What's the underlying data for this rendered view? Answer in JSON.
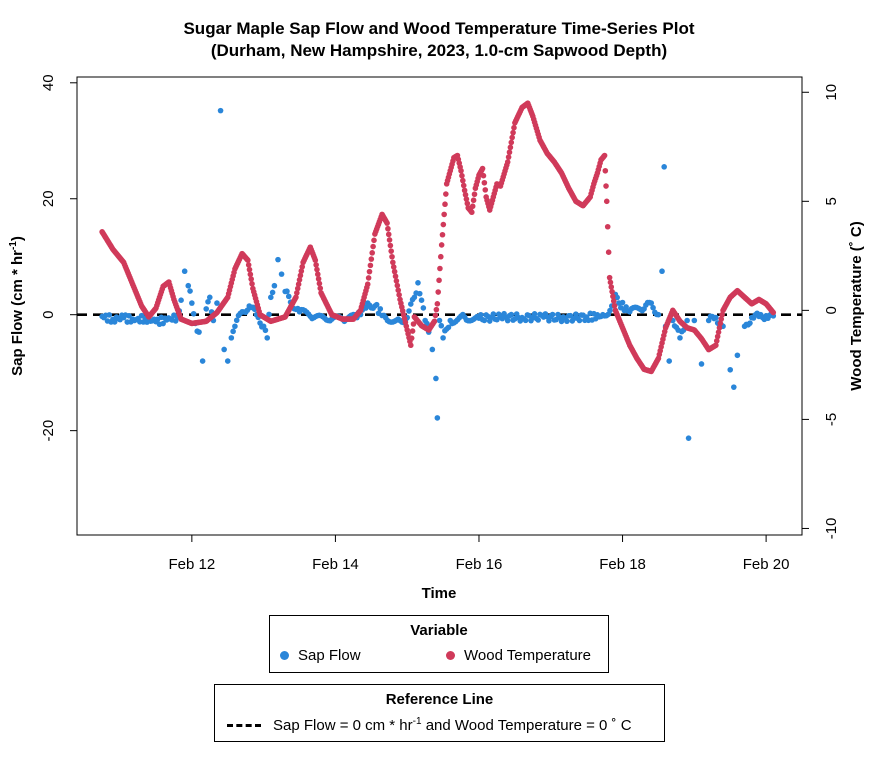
{
  "chart_data": {
    "type": "scatter",
    "title_line1": "Sugar Maple Sap Flow and Wood Temperature Time-Series Plot",
    "title_line2": "(Durham, New Hampshire, 2023, 1.0-cm Sapwood Depth)",
    "xlabel": "Time",
    "ylabel_left_main": "Sap Flow (cm * hr",
    "ylabel_left_sup": "-1",
    "ylabel_left_end": ")",
    "ylabel_right": "Wood Temperature (˚ C)",
    "x_ticks": [
      "Feb 12",
      "Feb 14",
      "Feb 16",
      "Feb 18",
      "Feb 20"
    ],
    "x_tick_values": [
      12,
      14,
      16,
      18,
      20
    ],
    "xlim": [
      10.4,
      20.5
    ],
    "y_left_ticks": [
      "-20",
      "0",
      "20",
      "40"
    ],
    "y_left_tick_values": [
      -20,
      0,
      20,
      40
    ],
    "ylim_left": [
      -38,
      41
    ],
    "y_right_ticks": [
      "-10",
      "-5",
      "0",
      "5",
      "10"
    ],
    "y_right_tick_values": [
      -10,
      -5,
      0,
      5,
      10
    ],
    "ylim_right": [
      -10.3,
      10.7
    ],
    "colors": {
      "sap_flow": "#2a86d9",
      "wood_temperature": "#d03a5a",
      "reference": "#000000"
    },
    "series": [
      {
        "name": "Sap Flow",
        "axis": "left",
        "points": [
          [
            10.75,
            -0.3
          ],
          [
            10.9,
            -0.8
          ],
          [
            11.05,
            -0.5
          ],
          [
            11.2,
            -1.0
          ],
          [
            11.35,
            -0.6
          ],
          [
            11.5,
            -1.2
          ],
          [
            11.65,
            -0.9
          ],
          [
            11.8,
            -0.4
          ],
          [
            11.85,
            2.5
          ],
          [
            11.9,
            7.5
          ],
          [
            11.95,
            5.0
          ],
          [
            12.0,
            2.0
          ],
          [
            12.05,
            -1.5
          ],
          [
            12.1,
            -3.0
          ],
          [
            12.15,
            -8.0
          ],
          [
            12.2,
            1.0
          ],
          [
            12.25,
            3.0
          ],
          [
            12.3,
            -1.0
          ],
          [
            12.35,
            2.0
          ],
          [
            12.4,
            35.2
          ],
          [
            12.45,
            -6.0
          ],
          [
            12.5,
            -8.0
          ],
          [
            12.55,
            -4.0
          ],
          [
            12.6,
            -2.0
          ],
          [
            12.7,
            0.5
          ],
          [
            12.8,
            1.5
          ],
          [
            12.9,
            0.0
          ],
          [
            13.0,
            -2.0
          ],
          [
            13.05,
            -4.0
          ],
          [
            13.1,
            3.0
          ],
          [
            13.15,
            5.0
          ],
          [
            13.2,
            9.5
          ],
          [
            13.25,
            7.0
          ],
          [
            13.3,
            4.0
          ],
          [
            13.4,
            2.0
          ],
          [
            13.5,
            0.5
          ],
          [
            13.7,
            -0.5
          ],
          [
            13.9,
            -1.0
          ],
          [
            14.1,
            -0.8
          ],
          [
            14.3,
            -0.5
          ],
          [
            14.45,
            2.0
          ],
          [
            14.55,
            1.5
          ],
          [
            14.7,
            -0.5
          ],
          [
            14.9,
            -1.0
          ],
          [
            15.0,
            -0.5
          ],
          [
            15.1,
            3.0
          ],
          [
            15.15,
            5.5
          ],
          [
            15.2,
            2.5
          ],
          [
            15.25,
            -1.0
          ],
          [
            15.3,
            -3.0
          ],
          [
            15.35,
            -6.0
          ],
          [
            15.4,
            -11.0
          ],
          [
            15.42,
            -17.8
          ],
          [
            15.45,
            -1.0
          ],
          [
            15.5,
            -4.0
          ],
          [
            15.6,
            -1.0
          ],
          [
            15.8,
            -0.4
          ],
          [
            16.0,
            -0.6
          ],
          [
            16.3,
            -0.4
          ],
          [
            16.6,
            -0.5
          ],
          [
            16.9,
            -0.4
          ],
          [
            17.2,
            -0.6
          ],
          [
            17.5,
            -0.4
          ],
          [
            17.75,
            -0.2
          ],
          [
            17.85,
            1.5
          ],
          [
            17.9,
            3.5
          ],
          [
            17.95,
            2.0
          ],
          [
            18.1,
            0.5
          ],
          [
            18.3,
            1.0
          ],
          [
            18.4,
            2.0
          ],
          [
            18.5,
            0.0
          ],
          [
            18.55,
            7.5
          ],
          [
            18.58,
            25.5
          ],
          [
            18.6,
            -2.0
          ],
          [
            18.65,
            -8.0
          ],
          [
            18.7,
            -1.0
          ],
          [
            18.8,
            -4.0
          ],
          [
            18.9,
            -1.0
          ],
          [
            18.92,
            -21.3
          ],
          [
            19.0,
            -1.0
          ],
          [
            19.1,
            -8.5
          ],
          [
            19.2,
            -1.0
          ],
          [
            19.3,
            -0.5
          ],
          [
            19.4,
            -2.0
          ],
          [
            19.5,
            -9.5
          ],
          [
            19.55,
            -12.5
          ],
          [
            19.6,
            -7.0
          ],
          [
            19.7,
            -2.0
          ],
          [
            19.8,
            -0.5
          ],
          [
            19.9,
            -0.3
          ],
          [
            20.0,
            -0.2
          ],
          [
            20.1,
            -0.2
          ]
        ]
      },
      {
        "name": "Wood Temperature",
        "axis": "right",
        "points": [
          [
            10.75,
            3.6
          ],
          [
            10.9,
            2.8
          ],
          [
            11.05,
            2.2
          ],
          [
            11.2,
            1.0
          ],
          [
            11.3,
            0.2
          ],
          [
            11.4,
            -0.3
          ],
          [
            11.5,
            0.1
          ],
          [
            11.6,
            1.1
          ],
          [
            11.68,
            1.3
          ],
          [
            11.75,
            0.5
          ],
          [
            11.85,
            -0.4
          ],
          [
            12.0,
            -0.6
          ],
          [
            12.2,
            -0.5
          ],
          [
            12.35,
            -0.1
          ],
          [
            12.5,
            0.6
          ],
          [
            12.6,
            1.9
          ],
          [
            12.7,
            2.6
          ],
          [
            12.78,
            2.3
          ],
          [
            12.85,
            1.0
          ],
          [
            12.95,
            -0.2
          ],
          [
            13.1,
            -0.5
          ],
          [
            13.3,
            -0.3
          ],
          [
            13.45,
            0.6
          ],
          [
            13.55,
            2.2
          ],
          [
            13.65,
            2.9
          ],
          [
            13.72,
            2.3
          ],
          [
            13.8,
            0.8
          ],
          [
            13.95,
            -0.2
          ],
          [
            14.1,
            -0.4
          ],
          [
            14.25,
            -0.4
          ],
          [
            14.35,
            0.0
          ],
          [
            14.45,
            1.2
          ],
          [
            14.55,
            3.5
          ],
          [
            14.65,
            4.4
          ],
          [
            14.72,
            4.0
          ],
          [
            14.8,
            2.2
          ],
          [
            14.9,
            0.5
          ],
          [
            15.0,
            -0.9
          ],
          [
            15.05,
            -1.6
          ],
          [
            15.1,
            -0.3
          ],
          [
            15.2,
            -0.7
          ],
          [
            15.3,
            -0.9
          ],
          [
            15.38,
            -0.5
          ],
          [
            15.42,
            0.3
          ],
          [
            15.48,
            3.0
          ],
          [
            15.55,
            5.8
          ],
          [
            15.6,
            6.4
          ],
          [
            15.65,
            7.0
          ],
          [
            15.7,
            7.1
          ],
          [
            15.75,
            6.4
          ],
          [
            15.8,
            5.5
          ],
          [
            15.85,
            4.7
          ],
          [
            15.9,
            4.5
          ],
          [
            15.95,
            5.6
          ],
          [
            16.0,
            6.2
          ],
          [
            16.05,
            6.5
          ],
          [
            16.1,
            5.2
          ],
          [
            16.15,
            4.6
          ],
          [
            16.2,
            5.2
          ],
          [
            16.25,
            5.8
          ],
          [
            16.3,
            5.7
          ],
          [
            16.4,
            6.8
          ],
          [
            16.5,
            8.6
          ],
          [
            16.6,
            9.3
          ],
          [
            16.68,
            9.5
          ],
          [
            16.75,
            8.9
          ],
          [
            16.85,
            7.8
          ],
          [
            16.95,
            7.2
          ],
          [
            17.05,
            6.8
          ],
          [
            17.15,
            6.3
          ],
          [
            17.25,
            5.6
          ],
          [
            17.35,
            5.0
          ],
          [
            17.45,
            4.8
          ],
          [
            17.55,
            5.2
          ],
          [
            17.6,
            5.8
          ],
          [
            17.65,
            6.3
          ],
          [
            17.7,
            6.9
          ],
          [
            17.75,
            7.1
          ],
          [
            17.78,
            5.0
          ],
          [
            17.82,
            1.5
          ],
          [
            17.9,
            0.0
          ],
          [
            18.0,
            -0.8
          ],
          [
            18.1,
            -1.6
          ],
          [
            18.2,
            -2.2
          ],
          [
            18.3,
            -2.7
          ],
          [
            18.4,
            -2.8
          ],
          [
            18.5,
            -2.2
          ],
          [
            18.6,
            -0.8
          ],
          [
            18.7,
            0.0
          ],
          [
            18.8,
            -0.5
          ],
          [
            18.9,
            -0.8
          ],
          [
            19.0,
            -0.9
          ],
          [
            19.1,
            -1.3
          ],
          [
            19.2,
            -1.8
          ],
          [
            19.3,
            -1.6
          ],
          [
            19.4,
            0.0
          ],
          [
            19.5,
            0.6
          ],
          [
            19.6,
            0.9
          ],
          [
            19.7,
            0.6
          ],
          [
            19.8,
            0.3
          ],
          [
            19.9,
            0.5
          ],
          [
            20.0,
            0.3
          ],
          [
            20.1,
            -0.1
          ]
        ]
      }
    ],
    "reference_line": {
      "sap_flow": 0,
      "wood_temperature": 0,
      "style": "dashed"
    }
  },
  "legend_variable": {
    "title": "Variable",
    "items": [
      {
        "label": "Sap Flow",
        "color": "#2a86d9"
      },
      {
        "label": "Wood Temperature",
        "color": "#d03a5a"
      }
    ]
  },
  "legend_reference": {
    "title": "Reference Line",
    "label_part1": "Sap Flow = 0 cm * hr",
    "label_sup": "-1",
    "label_part2": " and Wood Temperature = 0 ˚ C"
  }
}
